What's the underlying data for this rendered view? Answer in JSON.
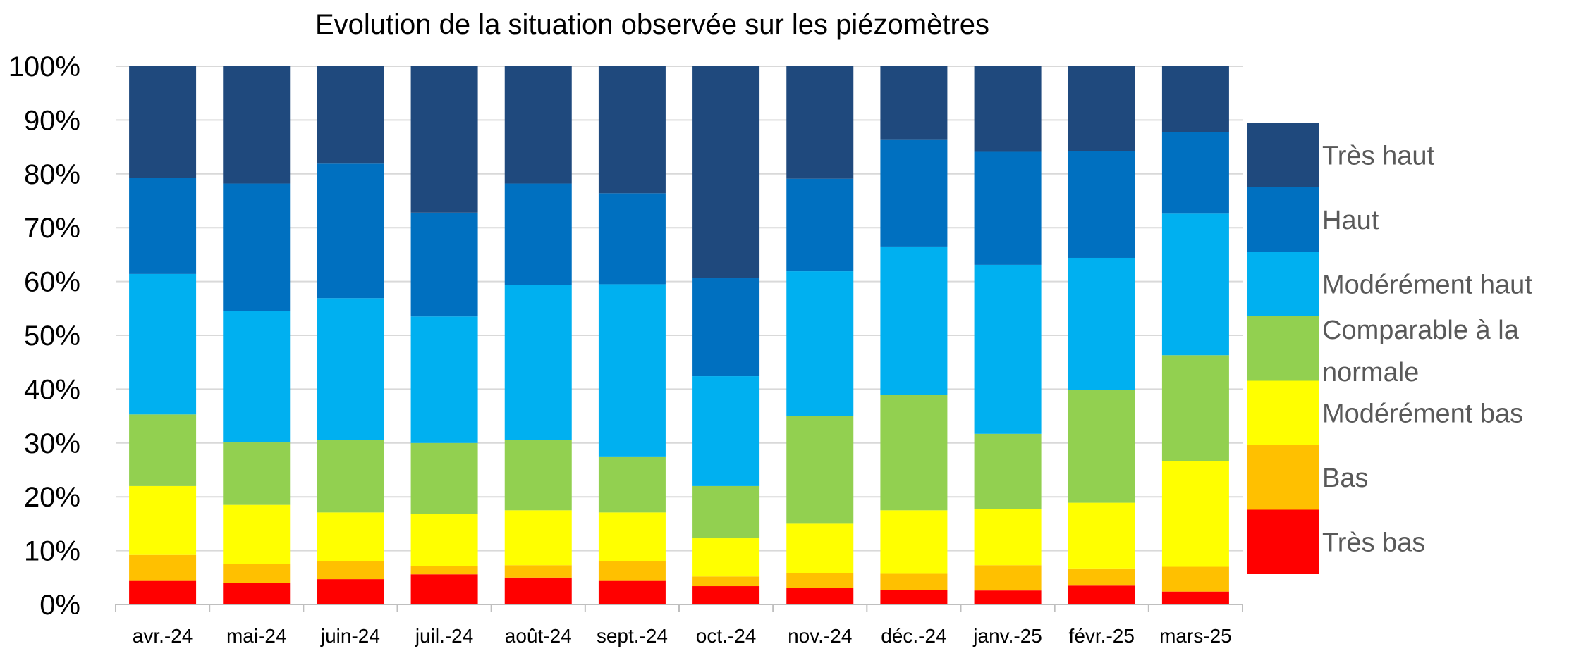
{
  "chart_data": {
    "type": "bar",
    "stacked": true,
    "title": "Evolution de la situation observée sur les  piézomètres",
    "xlabel": "",
    "ylabel": "",
    "ylim": [
      0,
      100
    ],
    "yticks": [
      "0%",
      "10%",
      "20%",
      "30%",
      "40%",
      "50%",
      "60%",
      "70%",
      "80%",
      "90%",
      "100%"
    ],
    "categories": [
      "avr.-24",
      "mai-24",
      "juin-24",
      "juil.-24",
      "août-24",
      "sept.-24",
      "oct.-24",
      "nov.-24",
      "déc.-24",
      "janv.-25",
      "févr.-25",
      "mars-25"
    ],
    "series": [
      {
        "name": "Très bas",
        "color": "#FF0000",
        "values": [
          4.5,
          4.0,
          4.7,
          5.6,
          5.0,
          4.5,
          3.4,
          3.1,
          2.7,
          2.6,
          3.5,
          2.4
        ]
      },
      {
        "name": "Bas",
        "color": "#FFC000",
        "values": [
          4.7,
          3.5,
          3.3,
          1.5,
          2.3,
          3.5,
          1.8,
          2.7,
          3.0,
          4.7,
          3.2,
          4.6
        ]
      },
      {
        "name": "Modérément bas",
        "color": "#FFFF00",
        "values": [
          12.8,
          11.0,
          9.1,
          9.7,
          10.2,
          9.1,
          7.1,
          9.2,
          11.8,
          10.4,
          12.2,
          19.6
        ]
      },
      {
        "name": "Comparable à la normale",
        "color": "#92D050",
        "values": [
          13.3,
          11.6,
          13.4,
          13.2,
          13.0,
          10.4,
          9.7,
          20.0,
          21.5,
          14.0,
          20.9,
          19.7
        ]
      },
      {
        "name": "Modérément haut",
        "color": "#00B0F0",
        "values": [
          26.1,
          24.4,
          26.4,
          23.5,
          28.8,
          32.0,
          20.4,
          26.9,
          27.5,
          31.4,
          24.6,
          26.3
        ]
      },
      {
        "name": "Haut",
        "color": "#0070C0",
        "values": [
          17.8,
          23.7,
          25.0,
          19.3,
          18.9,
          16.9,
          18.2,
          17.2,
          19.8,
          21.0,
          19.8,
          15.2
        ]
      },
      {
        "name": "Très haut",
        "color": "#1F497D",
        "values": [
          20.8,
          21.8,
          18.1,
          27.2,
          21.8,
          23.6,
          39.4,
          20.9,
          13.7,
          15.9,
          15.8,
          12.2
        ]
      }
    ],
    "legend_position": "right",
    "gridlines": true
  }
}
